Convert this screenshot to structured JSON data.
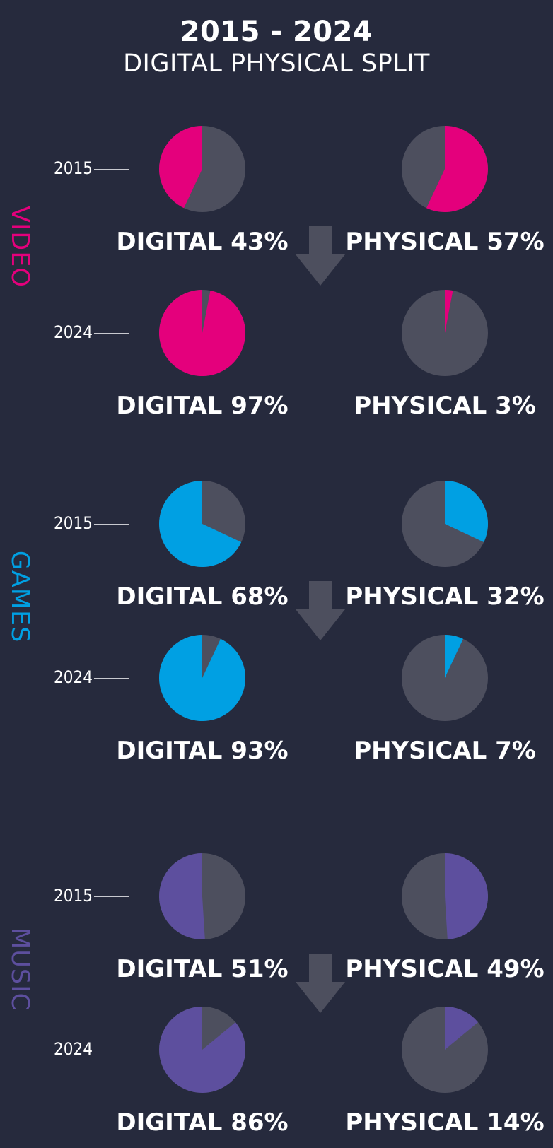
{
  "title": "2015 - 2024",
  "subtitle": "DIGITAL PHYSICAL SPLIT",
  "colors": {
    "background": "#262a3d",
    "remainder": "#4d4f5e",
    "arrow": "#4d4f5e",
    "video": "#e4007c",
    "games": "#00a0e3",
    "music": "#5d4f9e"
  },
  "chart_data": {
    "type": "pie",
    "title": "2015 - 2024",
    "subtitle": "DIGITAL PHYSICAL SPLIT",
    "groups": [
      {
        "category": "VIDEO",
        "color": "#e4007c",
        "rows": [
          {
            "year": "2015",
            "digital": 43,
            "physical": 57,
            "digital_label": "DIGITAL 43%",
            "physical_label": "PHYSICAL 57%"
          },
          {
            "year": "2024",
            "digital": 97,
            "physical": 3,
            "digital_label": "DIGITAL 97%",
            "physical_label": "PHYSICAL 3%"
          }
        ]
      },
      {
        "category": "GAMES",
        "color": "#00a0e3",
        "rows": [
          {
            "year": "2015",
            "digital": 68,
            "physical": 32,
            "digital_label": "DIGITAL 68%",
            "physical_label": "PHYSICAL 32%"
          },
          {
            "year": "2024",
            "digital": 93,
            "physical": 7,
            "digital_label": "DIGITAL 93%",
            "physical_label": "PHYSICAL 7%"
          }
        ]
      },
      {
        "category": "MUSIC",
        "color": "#5d4f9e",
        "rows": [
          {
            "year": "2015",
            "digital": 51,
            "physical": 49,
            "digital_label": "DIGITAL 51%",
            "physical_label": "PHYSICAL 49%"
          },
          {
            "year": "2024",
            "digital": 86,
            "physical": 14,
            "digital_label": "DIGITAL 86%",
            "physical_label": "PHYSICAL 14%"
          }
        ]
      }
    ]
  }
}
